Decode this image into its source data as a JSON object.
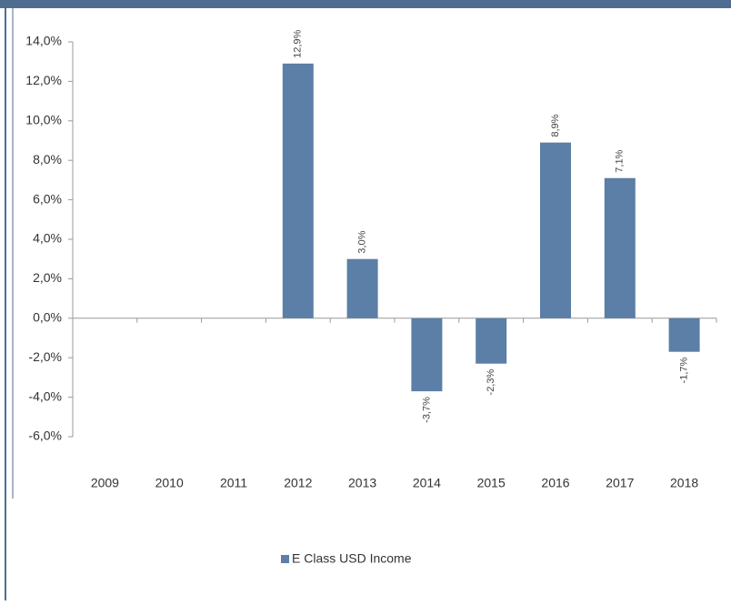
{
  "chart_data": {
    "type": "bar",
    "categories": [
      "2009",
      "2010",
      "2011",
      "2012",
      "2013",
      "2014",
      "2015",
      "2016",
      "2017",
      "2018"
    ],
    "series": [
      {
        "name": "E Class USD Income",
        "color": "#5b7fa6",
        "values": [
          null,
          null,
          null,
          12.9,
          3.0,
          -3.7,
          -2.3,
          8.9,
          7.1,
          -1.7
        ],
        "value_labels": [
          null,
          null,
          null,
          "12,9%",
          "3,0%",
          "-3,7%",
          "-2,3%",
          "8,9%",
          "7,1%",
          "-1,7%"
        ]
      }
    ],
    "ylim": [
      -6,
      14
    ],
    "yticks": [
      {
        "value": -6,
        "label": "-6,0%"
      },
      {
        "value": -4,
        "label": "-4,0%"
      },
      {
        "value": -2,
        "label": "-2,0%"
      },
      {
        "value": 0,
        "label": "0,0%"
      },
      {
        "value": 2,
        "label": "2,0%"
      },
      {
        "value": 4,
        "label": "4,0%"
      },
      {
        "value": 6,
        "label": "6,0%"
      },
      {
        "value": 8,
        "label": "8,0%"
      },
      {
        "value": 10,
        "label": "10,0%"
      },
      {
        "value": 12,
        "label": "12,0%"
      },
      {
        "value": 14,
        "label": "14,0%"
      }
    ],
    "legend": "bottom"
  }
}
